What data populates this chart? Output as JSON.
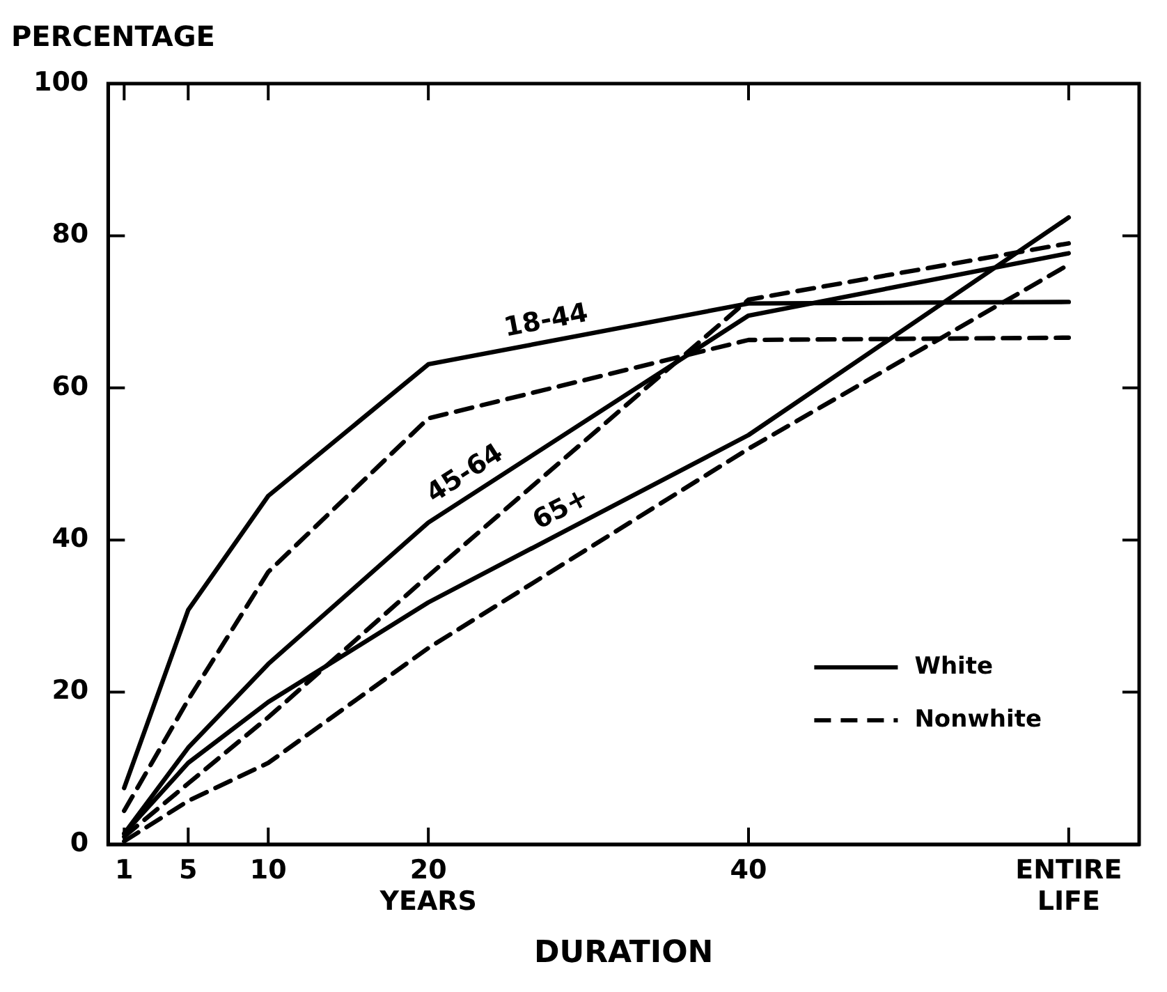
{
  "chart_data": {
    "type": "line",
    "ylabel": "PERCENTAGE",
    "xlabel": "DURATION",
    "x": [
      1,
      5,
      10,
      20,
      40,
      60
    ],
    "xlim": [
      0,
      64.4
    ],
    "xticks": [
      1,
      5,
      10,
      {
        "value": 20,
        "label": "20\nYEARS"
      },
      40,
      {
        "value": 60,
        "label": "ENTIRE\nLIFE"
      }
    ],
    "ylim": [
      0,
      100
    ],
    "yticks": [
      0,
      20,
      40,
      60,
      80,
      100
    ],
    "grid": false,
    "legend": "bottom right",
    "marker": "none",
    "series": [
      {
        "name": "White",
        "color": "#000000",
        "line_style": "solid",
        "values": [
          7.4,
          30.8,
          45.8,
          63.1,
          71.1,
          71.3
        ]
      },
      {
        "name": "Nonwhite",
        "color": "#000000",
        "line_style": "dashed",
        "values": [
          4.4,
          19,
          35.8,
          56,
          66.3,
          66.6
        ]
      },
      {
        "color": "#000000",
        "line_style": "solid",
        "values": [
          1.4,
          12.7,
          23.7,
          42.3,
          69.5,
          77.7
        ]
      },
      {
        "color": "#000000",
        "line_style": "dashed",
        "values": [
          1,
          8,
          16.7,
          35.3,
          71.6,
          79
        ]
      },
      {
        "color": "#000000",
        "line_style": "solid",
        "values": [
          1.4,
          10.7,
          18.7,
          31.8,
          53.8,
          82.4
        ]
      },
      {
        "color": "#000000",
        "line_style": "dashed",
        "values": [
          0.4,
          5.7,
          10.7,
          25.8,
          52,
          76.2
        ]
      }
    ],
    "annotations": [
      {
        "text": "18-44",
        "x": 27.6,
        "y": 66.1
      },
      {
        "text": "45-64",
        "x": 23,
        "y": 46.4
      },
      {
        "text": "65+",
        "x": 28.9,
        "y": 41.6
      }
    ]
  }
}
